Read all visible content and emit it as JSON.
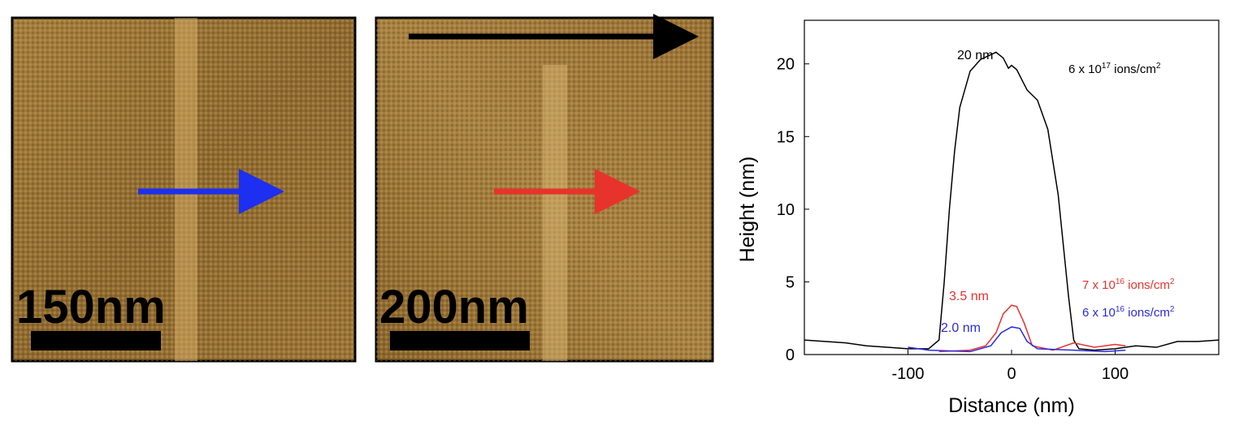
{
  "images": [
    {
      "scale_label": "150nm"
    },
    {
      "scale_label": "200nm"
    }
  ],
  "chart_data": {
    "type": "line",
    "xlabel": "Distance (nm)",
    "ylabel": "Height (nm)",
    "xlim": [
      -200,
      200
    ],
    "ylim": [
      0,
      23
    ],
    "xticks": [
      -100,
      0,
      100
    ],
    "yticks": [
      0,
      5,
      10,
      15,
      20
    ],
    "series": [
      {
        "name": [
          "6 x 10",
          "17",
          " ions/cm",
          "2"
        ],
        "peak_label": "20 nm",
        "color": "#000000",
        "x": [
          -200,
          -180,
          -160,
          -140,
          -120,
          -100,
          -80,
          -70,
          -65,
          -60,
          -55,
          -50,
          -40,
          -30,
          -15,
          -8,
          -3,
          0,
          5,
          15,
          25,
          35,
          45,
          55,
          60,
          65,
          80,
          100,
          120,
          140,
          160,
          180,
          200
        ],
        "values": [
          1.0,
          0.9,
          0.8,
          0.6,
          0.5,
          0.4,
          0.4,
          1,
          5,
          10,
          14,
          17,
          19.5,
          20.3,
          20.8,
          20.4,
          19.7,
          19.9,
          19.6,
          18.2,
          17.5,
          15.5,
          11,
          4,
          1,
          0.4,
          0.3,
          0.4,
          0.6,
          0.5,
          0.9,
          0.9,
          1.0
        ]
      },
      {
        "name": [
          "7 x 10",
          "16",
          " ions/cm",
          "2"
        ],
        "peak_label": "3.5 nm",
        "color": "#e8322c",
        "x": [
          -70,
          -40,
          -25,
          -15,
          -8,
          0,
          5,
          12,
          20,
          40,
          60,
          80,
          100,
          110
        ],
        "values": [
          0.2,
          0.3,
          0.6,
          1.5,
          2.8,
          3.4,
          3.3,
          2.2,
          0.6,
          0.3,
          0.8,
          0.5,
          0.7,
          0.6
        ]
      },
      {
        "name": [
          "6 x 10",
          "16",
          " ions/cm",
          "2"
        ],
        "peak_label": "2.0 nm",
        "color": "#2a2ae0",
        "x": [
          -100,
          -80,
          -40,
          -20,
          -10,
          0,
          8,
          15,
          25,
          60,
          90,
          110
        ],
        "values": [
          0.5,
          0.3,
          0.2,
          0.6,
          1.5,
          1.9,
          1.8,
          0.9,
          0.4,
          0.3,
          0.2,
          0.3
        ]
      }
    ]
  }
}
